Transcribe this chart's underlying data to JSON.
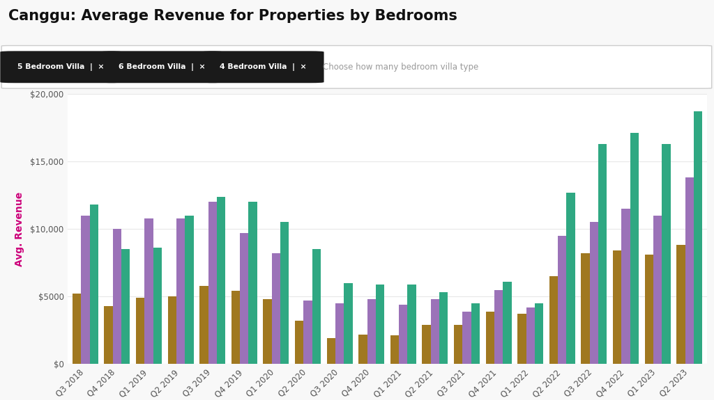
{
  "title": "Canggu: Average Revenue for Properties by Bedrooms",
  "ylabel": "Avg. Revenue",
  "ylabel_color": "#cc007a",
  "background_color": "#f8f8f8",
  "plot_background": "#ffffff",
  "filter_bar_text": "Choose how many bedroom villa type",
  "filter_tags": [
    "5 Bedroom Villa",
    "6 Bedroom Villa",
    "4 Bedroom Villa"
  ],
  "quarters": [
    "Q3 2018",
    "Q4 2018",
    "Q1 2019",
    "Q2 2019",
    "Q3 2019",
    "Q4 2019",
    "Q1 2020",
    "Q2 2020",
    "Q3 2020",
    "Q4 2020",
    "Q1 2021",
    "Q2 2021",
    "Q3 2021",
    "Q4 2021",
    "Q1 2022",
    "Q2 2022",
    "Q3 2022",
    "Q4 2022",
    "Q1 2023",
    "Q2 2023"
  ],
  "series": {
    "4 Bedroom Villa": {
      "color": "#a07820",
      "values": [
        5200,
        4300,
        4900,
        5000,
        5800,
        5400,
        4800,
        3200,
        1900,
        2200,
        2100,
        2900,
        2900,
        3900,
        3700,
        6500,
        8200,
        8400,
        8100,
        8800
      ]
    },
    "5 Bedroom Villa": {
      "color": "#9b72b8",
      "values": [
        11000,
        10000,
        10800,
        10800,
        12000,
        9700,
        8200,
        4700,
        4500,
        4800,
        4400,
        4800,
        3900,
        5500,
        4200,
        9500,
        10500,
        11500,
        11000,
        13800
      ]
    },
    "6 Bedroom Villa": {
      "color": "#2fa882",
      "values": [
        11800,
        8500,
        8600,
        11000,
        12400,
        12000,
        10500,
        8500,
        6000,
        5900,
        5900,
        5300,
        4500,
        6100,
        4500,
        12700,
        16300,
        17100,
        16300,
        18700
      ]
    }
  },
  "ylim": [
    0,
    20000
  ],
  "yticks": [
    0,
    5000,
    10000,
    15000,
    20000
  ],
  "ytick_labels": [
    "$0",
    "$5000",
    "$10,000",
    "$15,000",
    "$20,000"
  ],
  "grid_color": "#e8e8e8",
  "bar_width": 0.27,
  "title_fontsize": 15,
  "axis_fontsize": 10,
  "tick_fontsize": 8.5
}
